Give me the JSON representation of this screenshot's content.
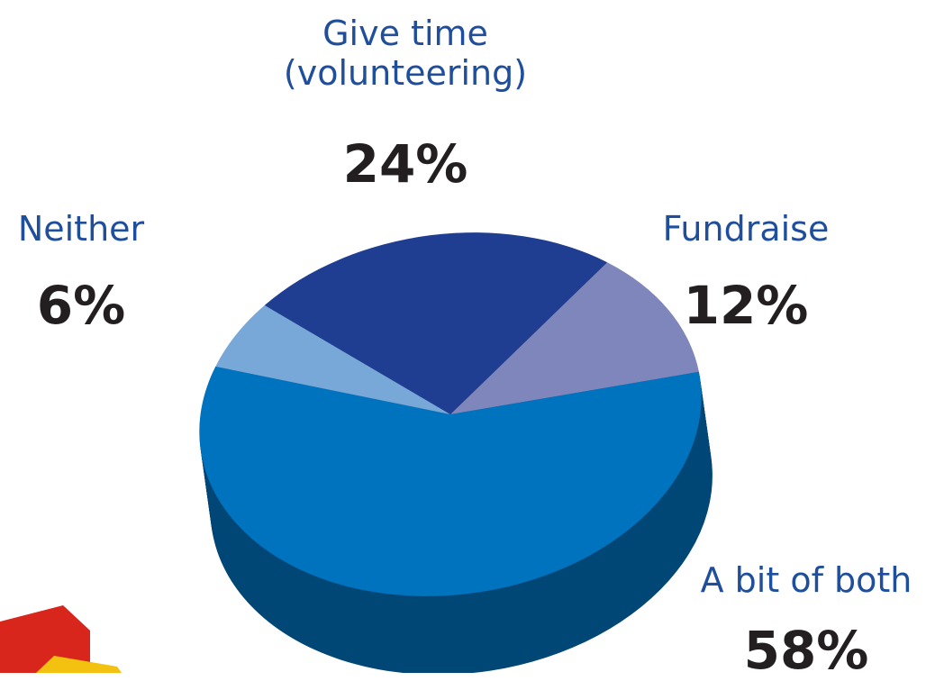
{
  "chart_data": {
    "type": "pie",
    "categories": [
      "Give time (volunteering)",
      "Fundraise",
      "A bit of both",
      "Neither"
    ],
    "values": [
      24,
      12,
      58,
      6
    ],
    "value_labels": [
      "24%",
      "12%",
      "58%",
      "6%"
    ],
    "colors": [
      "#1f3d91",
      "#7f86bb",
      "#0073bf",
      "#78a8d8"
    ]
  }
}
